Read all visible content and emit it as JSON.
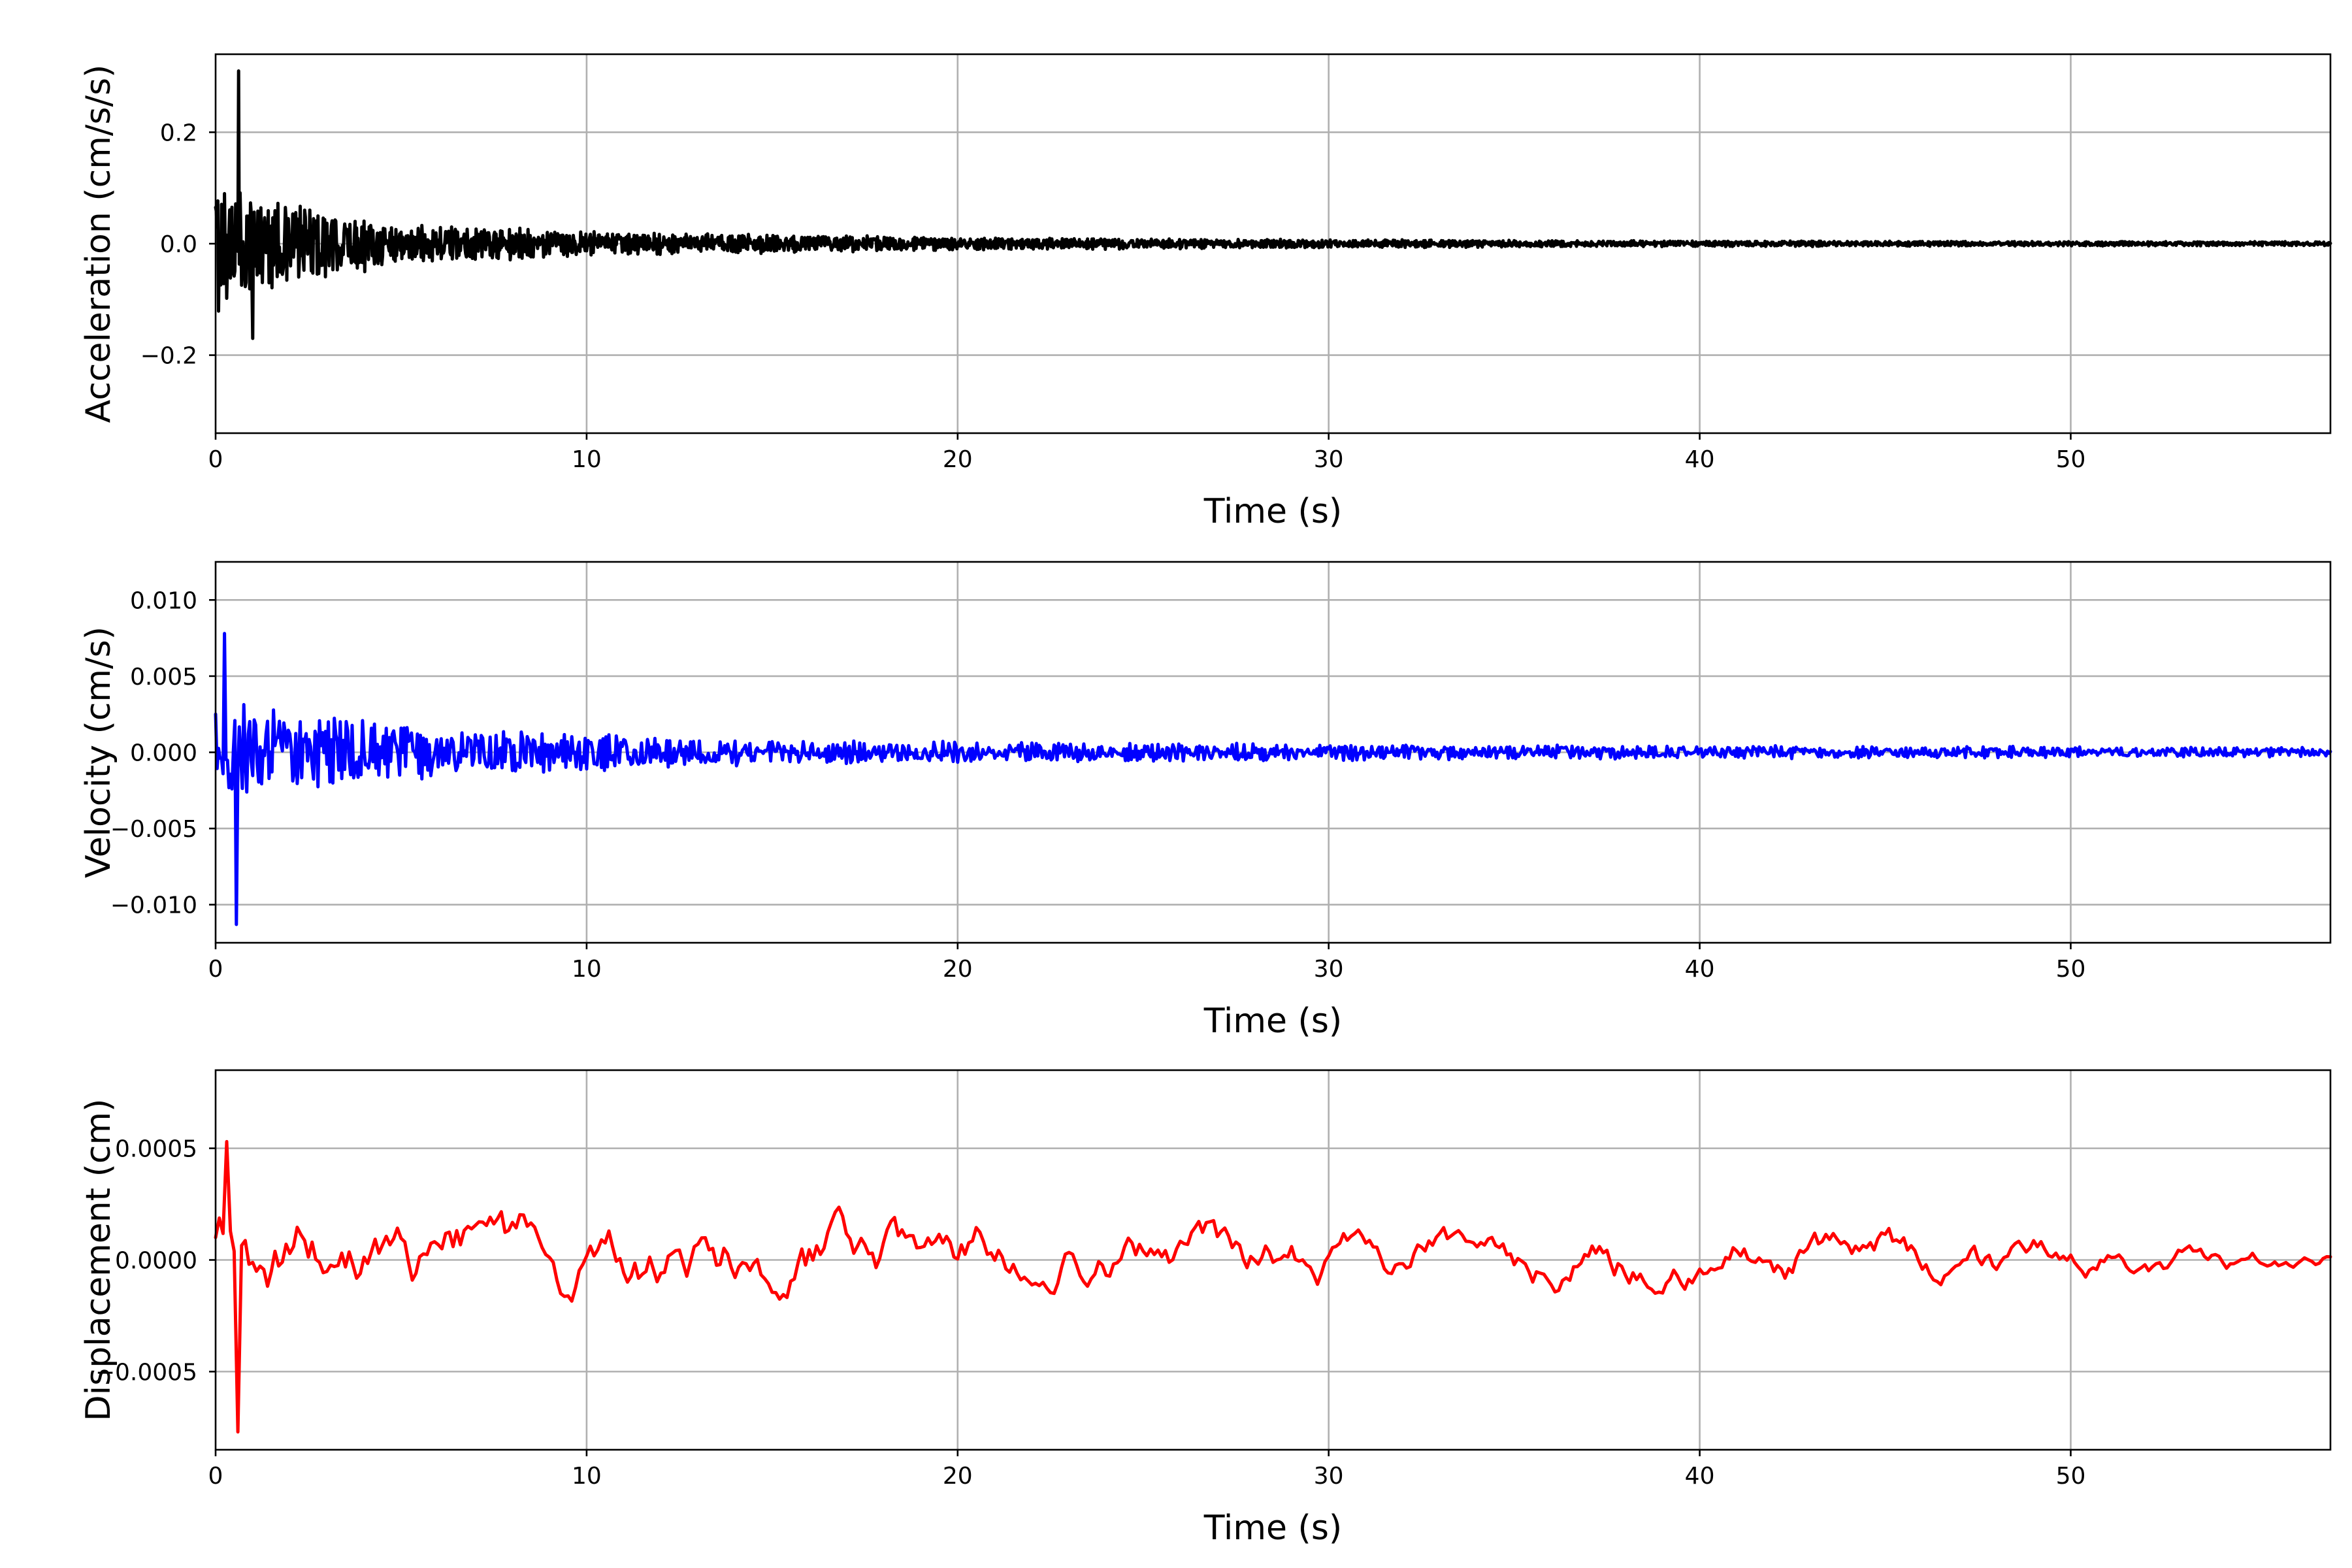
{
  "chart_data": [
    {
      "type": "line",
      "xlabel": "Time (s)",
      "ylabel": "Acceleration (cm/s/s)",
      "xlim": [
        0,
        57
      ],
      "ylim": [
        -0.34,
        0.34
      ],
      "xticks": [
        0,
        10,
        20,
        30,
        40,
        50
      ],
      "xtick_labels": [
        "0",
        "10",
        "20",
        "30",
        "40",
        "50"
      ],
      "yticks": [
        0.2,
        0.0,
        -0.2
      ],
      "ytick_labels": [
        "0.2",
        "0.0",
        "−0.2"
      ],
      "grid": true,
      "series": [
        {
          "color": "#000000",
          "signal": {
            "kind": "decaying-noise",
            "dt": 0.02,
            "t_end": 57,
            "peak": 0.31,
            "peak_time": 0.63,
            "trough": -0.17,
            "envelope": [
              [
                0,
                0.17
              ],
              [
                2,
                0.1
              ],
              [
                5,
                0.05
              ],
              [
                10,
                0.03
              ],
              [
                20,
                0.015
              ],
              [
                30,
                0.01
              ],
              [
                40,
                0.007
              ],
              [
                57,
                0.005
              ]
            ]
          }
        }
      ]
    },
    {
      "type": "line",
      "xlabel": "Time (s)",
      "ylabel": "Velocity (cm/s)",
      "xlim": [
        0,
        57
      ],
      "ylim": [
        -0.0125,
        0.0125
      ],
      "xticks": [
        0,
        10,
        20,
        30,
        40,
        50
      ],
      "xtick_labels": [
        "0",
        "10",
        "20",
        "30",
        "40",
        "50"
      ],
      "yticks": [
        0.01,
        0.005,
        0.0,
        -0.005,
        -0.01
      ],
      "ytick_labels": [
        "0.010",
        "0.005",
        "0.000",
        "−0.005",
        "−0.010"
      ],
      "grid": true,
      "series": [
        {
          "color": "#0000ff",
          "signal": {
            "kind": "decaying-noise",
            "dt": 0.04,
            "t_end": 57,
            "peak": 0.0078,
            "peak_time": 0.25,
            "trough": -0.0113,
            "trough_time": 0.58,
            "envelope": [
              [
                0,
                0.005
              ],
              [
                3,
                0.003
              ],
              [
                8,
                0.0018
              ],
              [
                15,
                0.0011
              ],
              [
                25,
                0.0008
              ],
              [
                40,
                0.0006
              ],
              [
                57,
                0.0004
              ]
            ]
          }
        }
      ]
    },
    {
      "type": "line",
      "xlabel": "Time (s)",
      "ylabel": "Displacement (cm)",
      "xlim": [
        0,
        57
      ],
      "ylim": [
        -0.00085,
        0.00085
      ],
      "xticks": [
        0,
        10,
        20,
        30,
        40,
        50
      ],
      "xtick_labels": [
        "0",
        "10",
        "20",
        "30",
        "40",
        "50"
      ],
      "yticks": [
        0.0005,
        0.0,
        -0.0005
      ],
      "ytick_labels": [
        "0.0005",
        "0.0000",
        "−0.0005"
      ],
      "grid": true,
      "series": [
        {
          "color": "#ff0000",
          "signal": {
            "kind": "wandering",
            "dt": 0.1,
            "t_end": 57,
            "peak": 0.00053,
            "peak_time": 0.35,
            "trough": -0.00077,
            "trough_time": 0.63,
            "envelope": [
              [
                0,
                0.0002
              ],
              [
                5,
                0.00015
              ],
              [
                15,
                0.00015
              ],
              [
                30,
                0.0001
              ],
              [
                45,
                0.0001
              ],
              [
                57,
                4e-05
              ]
            ]
          }
        }
      ]
    }
  ]
}
